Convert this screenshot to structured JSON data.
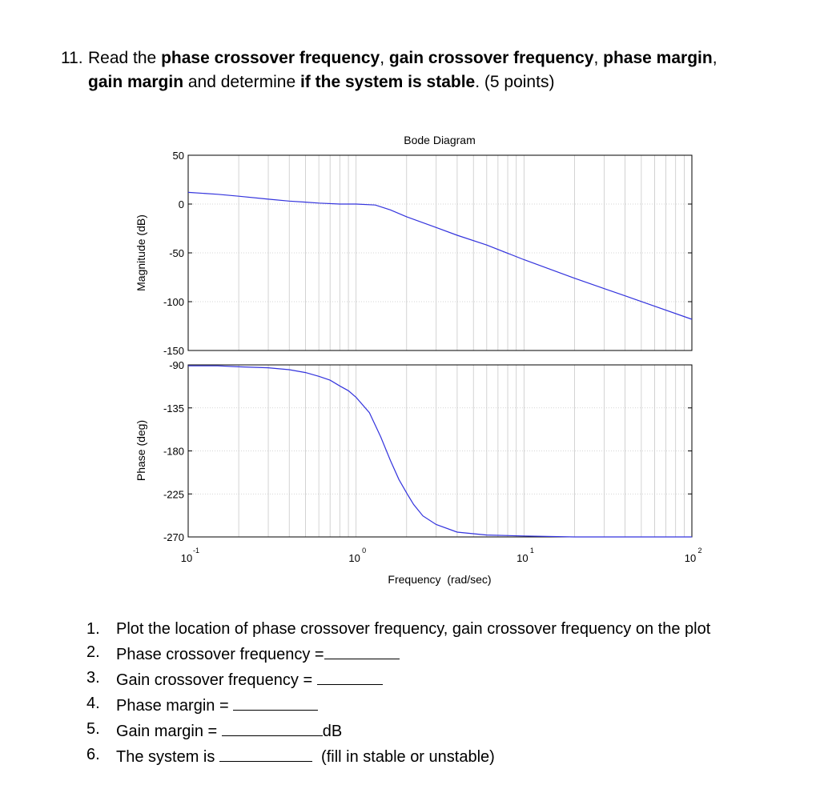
{
  "question": {
    "number": "11.",
    "parts": [
      {
        "text": "Read the ",
        "bold": false
      },
      {
        "text": "phase crossover frequency",
        "bold": true
      },
      {
        "text": ", ",
        "bold": false
      },
      {
        "text": "gain crossover frequency",
        "bold": true
      },
      {
        "text": ", ",
        "bold": false
      },
      {
        "text": "phase margin",
        "bold": true
      },
      {
        "text": ",",
        "bold": false
      }
    ],
    "line2_parts": [
      {
        "text": "gain margin",
        "bold": true
      },
      {
        "text": " and determine ",
        "bold": false
      },
      {
        "text": "if the system is stable",
        "bold": true
      },
      {
        "text": ". (5 points)",
        "bold": false
      }
    ]
  },
  "chart_data": {
    "type": "line",
    "title": "Bode Diagram",
    "xlabel": "Frequency  (rad/sec)",
    "x_scale": "log",
    "xlim": [
      0.1,
      100
    ],
    "x_ticks": [
      {
        "base": "10",
        "exp": "-1"
      },
      {
        "base": "10",
        "exp": "0"
      },
      {
        "base": "10",
        "exp": "1"
      },
      {
        "base": "10",
        "exp": "2"
      }
    ],
    "grid": true,
    "line_color": "#3333dd",
    "magnitude": {
      "ylabel": "Magnitude (dB)",
      "ylim": [
        -150,
        50
      ],
      "y_ticks": [
        "50",
        "0",
        "-50",
        "-100",
        "-150"
      ],
      "x": [
        0.1,
        0.15,
        0.2,
        0.3,
        0.4,
        0.5,
        0.6,
        0.8,
        1.0,
        1.3,
        1.6,
        2.0,
        3.0,
        4.0,
        6.0,
        10,
        20,
        40,
        100
      ],
      "y": [
        12,
        10,
        8,
        5,
        3,
        2,
        1,
        0,
        0,
        -1,
        -6,
        -13,
        -24,
        -32,
        -42,
        -57,
        -76,
        -94,
        -118
      ]
    },
    "phase": {
      "ylabel": "Phase (deg)",
      "ylim": [
        -270,
        -90
      ],
      "y_ticks": [
        "-90",
        "-135",
        "-180",
        "-225",
        "-270"
      ],
      "x": [
        0.1,
        0.15,
        0.2,
        0.3,
        0.4,
        0.5,
        0.6,
        0.7,
        0.8,
        0.9,
        1.0,
        1.2,
        1.4,
        1.6,
        1.8,
        2.0,
        2.2,
        2.5,
        3.0,
        4.0,
        6.0,
        10,
        20,
        100
      ],
      "y": [
        -91,
        -91,
        -92,
        -93,
        -95,
        -98,
        -102,
        -106,
        -112,
        -117,
        -124,
        -140,
        -165,
        -190,
        -210,
        -224,
        -236,
        -248,
        -257,
        -265,
        -268,
        -269,
        -270,
        -270
      ]
    }
  },
  "items": [
    {
      "num": "1.",
      "text": "Plot the location of phase crossover frequency, gain crossover frequency on the plot",
      "blank": 0,
      "after": ""
    },
    {
      "num": "2.",
      "text": "Phase crossover frequency =",
      "blank": 94,
      "after": ""
    },
    {
      "num": "3.",
      "text": "Gain crossover frequency = ",
      "blank": 82,
      "after": ""
    },
    {
      "num": "4.",
      "text": "Phase margin = ",
      "blank": 106,
      "after": ""
    },
    {
      "num": "5.",
      "text": "Gain margin = ",
      "blank": 126,
      "after": "dB"
    },
    {
      "num": "6.",
      "text": "The system is ",
      "blank": 116,
      "after": "  (fill in stable or unstable)"
    }
  ]
}
